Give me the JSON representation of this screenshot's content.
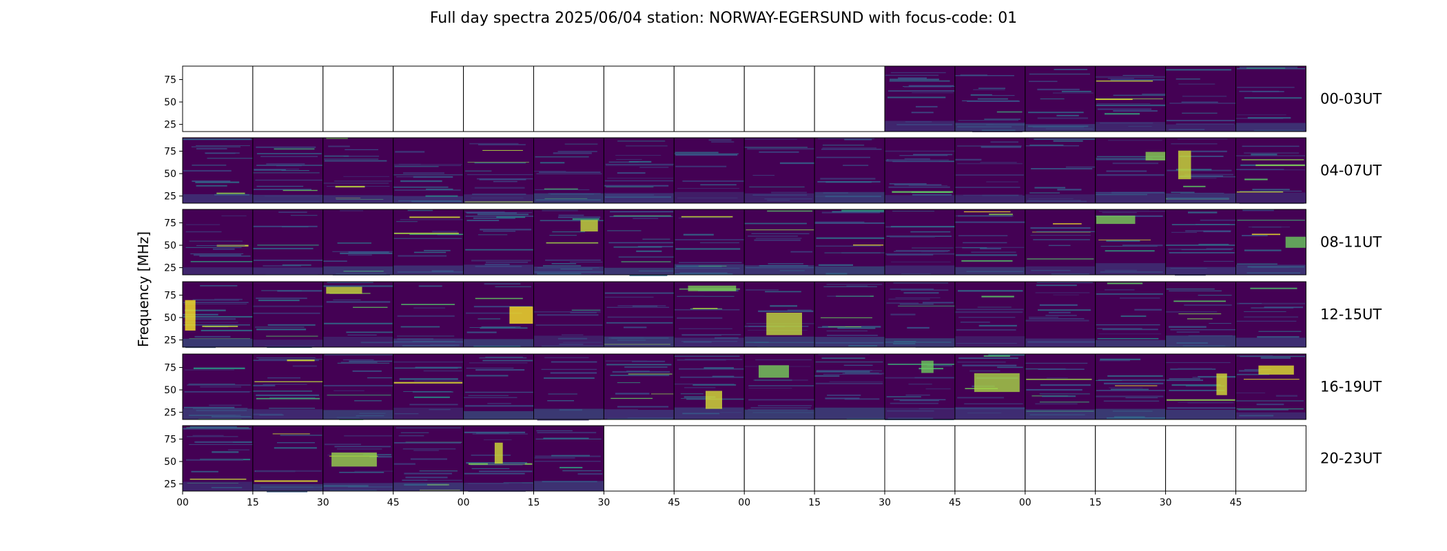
{
  "chart_data": {
    "type": "heatmap",
    "title": "Full day spectra 2025/06/04 station: NORWAY-EGERSUND with focus-code: 01",
    "ylabel": "Frequency [MHz]",
    "ylim": [
      17,
      90
    ],
    "yticks": [
      "75",
      "50",
      "25"
    ],
    "ytick_values": [
      75,
      50,
      25
    ],
    "xtick_labels": [
      "00",
      "15",
      "30",
      "45",
      "00",
      "15",
      "30",
      "45",
      "00",
      "15",
      "30",
      "45",
      "00",
      "15",
      "30",
      "45"
    ],
    "colormap": [
      "#440154",
      "#3b528b",
      "#21918c",
      "#5ec962",
      "#fde725"
    ],
    "rows": [
      {
        "label": "00-03UT",
        "has_data": [
          false,
          false,
          false,
          false,
          false,
          false,
          false,
          false,
          false,
          false,
          true,
          true,
          true,
          true,
          true,
          true
        ]
      },
      {
        "label": "04-07UT",
        "has_data": [
          true,
          true,
          true,
          true,
          true,
          true,
          true,
          true,
          true,
          true,
          true,
          true,
          true,
          true,
          true,
          true
        ]
      },
      {
        "label": "08-11UT",
        "has_data": [
          true,
          true,
          true,
          true,
          true,
          true,
          true,
          true,
          true,
          true,
          true,
          true,
          true,
          true,
          true,
          true
        ]
      },
      {
        "label": "12-15UT",
        "has_data": [
          true,
          true,
          true,
          true,
          true,
          true,
          true,
          true,
          true,
          true,
          true,
          true,
          true,
          true,
          true,
          true
        ]
      },
      {
        "label": "16-19UT",
        "has_data": [
          true,
          true,
          true,
          true,
          true,
          true,
          true,
          true,
          true,
          true,
          true,
          true,
          true,
          true,
          true,
          true
        ]
      },
      {
        "label": "20-23UT",
        "has_data": [
          true,
          true,
          true,
          true,
          true,
          true,
          false,
          false,
          false,
          false,
          false,
          false,
          false,
          false,
          false,
          false
        ]
      }
    ]
  }
}
